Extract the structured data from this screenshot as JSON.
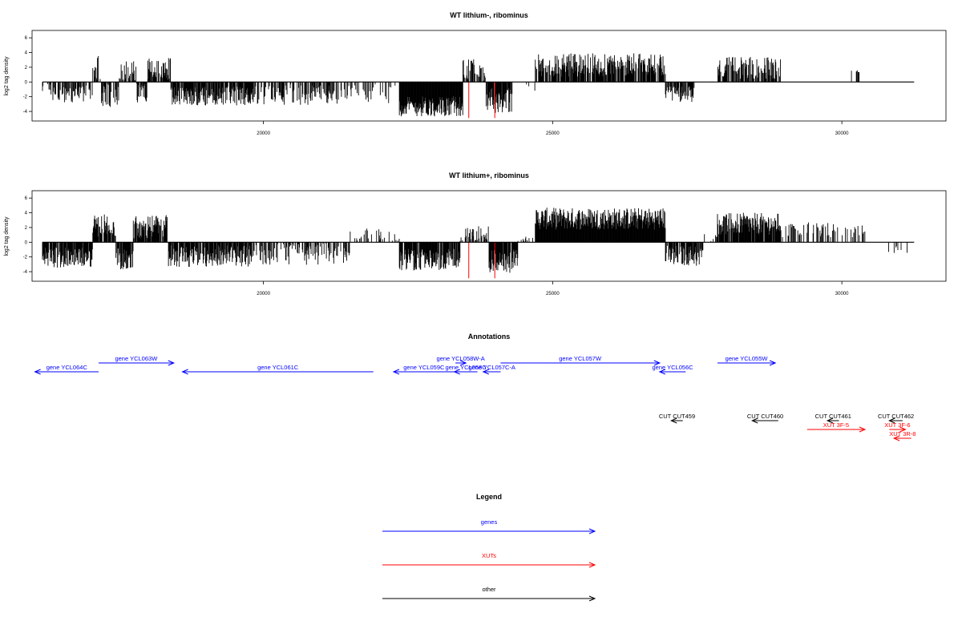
{
  "colors": {
    "genes": "#0000ff",
    "xuts": "#ff0000",
    "other": "#000000",
    "marker": "#ff0000"
  },
  "chart_data": [
    {
      "type": "bar",
      "title": "WT lithium-, ribominus",
      "ylabel": "log2 tag density",
      "xlabel": "",
      "xlim": [
        16000,
        31800
      ],
      "ylim": [
        -5.3,
        7
      ],
      "xticks": [
        20000,
        25000,
        30000
      ],
      "yticks": [
        -4,
        -2,
        0,
        2,
        4,
        6
      ],
      "markers": [
        23550,
        24000
      ],
      "segments": [
        {
          "from": 16180,
          "to": 16320,
          "mean": -0.8,
          "spread": 0.6,
          "density": 0.4
        },
        {
          "from": 16320,
          "to": 17050,
          "mean": -1.7,
          "spread": 1.2,
          "density": 0.55
        },
        {
          "from": 17050,
          "to": 17200,
          "mean": 1.8,
          "spread": 1.8,
          "density": 0.7
        },
        {
          "from": 17200,
          "to": 17500,
          "mean": -1.9,
          "spread": 1.6,
          "density": 0.6
        },
        {
          "from": 17500,
          "to": 17800,
          "mean": 1.3,
          "spread": 1.6,
          "density": 0.7
        },
        {
          "from": 17800,
          "to": 18000,
          "mean": -1.3,
          "spread": 1.5,
          "density": 0.6
        },
        {
          "from": 18000,
          "to": 18400,
          "mean": 1.7,
          "spread": 1.6,
          "density": 0.7
        },
        {
          "from": 18400,
          "to": 19800,
          "mean": -1.9,
          "spread": 1.3,
          "density": 0.85
        },
        {
          "from": 19800,
          "to": 21300,
          "mean": -1.7,
          "spread": 1.4,
          "density": 0.55
        },
        {
          "from": 21300,
          "to": 22350,
          "mean": -1.6,
          "spread": 1.3,
          "density": 0.25
        },
        {
          "from": 22350,
          "to": 23450,
          "mean": -3.3,
          "spread": 1.4,
          "density": 1.0
        },
        {
          "from": 23450,
          "to": 23850,
          "mean": 1.6,
          "spread": 1.5,
          "density": 0.5
        },
        {
          "from": 23850,
          "to": 24300,
          "mean": -2.4,
          "spread": 1.8,
          "density": 0.9
        },
        {
          "from": 24300,
          "to": 24700,
          "mean": -0.5,
          "spread": 0.7,
          "density": 0.15
        },
        {
          "from": 24700,
          "to": 26950,
          "mean": 2.3,
          "spread": 1.6,
          "density": 0.8
        },
        {
          "from": 26950,
          "to": 27450,
          "mean": -1.7,
          "spread": 1.1,
          "density": 0.75
        },
        {
          "from": 27450,
          "to": 27850,
          "mean": 0.0,
          "spread": 0.2,
          "density": 0.02
        },
        {
          "from": 27850,
          "to": 28950,
          "mean": 1.9,
          "spread": 1.5,
          "density": 0.65
        },
        {
          "from": 28950,
          "to": 30250,
          "mean": 1.5,
          "spread": 0.3,
          "density": 0.01
        },
        {
          "from": 30250,
          "to": 30300,
          "mean": 1.5,
          "spread": 0.2,
          "density": 0.8
        }
      ]
    },
    {
      "type": "bar",
      "title": "WT lithium+, ribominus",
      "ylabel": "log2 tag density",
      "xlabel": "",
      "xlim": [
        16000,
        31800
      ],
      "ylim": [
        -5.3,
        7
      ],
      "xticks": [
        20000,
        25000,
        30000
      ],
      "yticks": [
        -4,
        -2,
        0,
        2,
        4,
        6
      ],
      "markers": [
        23550,
        24000
      ],
      "segments": [
        {
          "from": 16180,
          "to": 17050,
          "mean": -2.1,
          "spread": 1.4,
          "density": 0.9
        },
        {
          "from": 17050,
          "to": 17450,
          "mean": 2.3,
          "spread": 1.5,
          "density": 0.85
        },
        {
          "from": 17450,
          "to": 17750,
          "mean": -2.2,
          "spread": 1.5,
          "density": 0.8
        },
        {
          "from": 17750,
          "to": 18350,
          "mean": 2.1,
          "spread": 1.6,
          "density": 0.85
        },
        {
          "from": 18350,
          "to": 19800,
          "mean": -1.9,
          "spread": 1.5,
          "density": 0.8
        },
        {
          "from": 19800,
          "to": 21500,
          "mean": -1.6,
          "spread": 1.5,
          "density": 0.45
        },
        {
          "from": 21500,
          "to": 22350,
          "mean": 0.2,
          "spread": 1.7,
          "density": 0.3
        },
        {
          "from": 22350,
          "to": 23400,
          "mean": -2.4,
          "spread": 1.5,
          "density": 0.85
        },
        {
          "from": 23400,
          "to": 23900,
          "mean": 1.0,
          "spread": 1.3,
          "density": 0.5
        },
        {
          "from": 23900,
          "to": 24400,
          "mean": -2.6,
          "spread": 1.6,
          "density": 0.95
        },
        {
          "from": 24400,
          "to": 24700,
          "mean": 0.3,
          "spread": 0.8,
          "density": 0.15
        },
        {
          "from": 24700,
          "to": 26950,
          "mean": 3.2,
          "spread": 1.5,
          "density": 1.0
        },
        {
          "from": 26950,
          "to": 27600,
          "mean": -1.8,
          "spread": 1.4,
          "density": 0.85
        },
        {
          "from": 27600,
          "to": 27850,
          "mean": 0.5,
          "spread": 0.8,
          "density": 0.1
        },
        {
          "from": 27850,
          "to": 28950,
          "mean": 2.5,
          "spread": 1.5,
          "density": 0.9
        },
        {
          "from": 28950,
          "to": 29950,
          "mean": 1.7,
          "spread": 1.0,
          "density": 0.3
        },
        {
          "from": 29950,
          "to": 30400,
          "mean": 1.4,
          "spread": 0.9,
          "density": 0.25
        },
        {
          "from": 30800,
          "to": 31200,
          "mean": -0.7,
          "spread": 0.9,
          "density": 0.2
        }
      ]
    }
  ],
  "annotations": {
    "title": "Annotations",
    "features": [
      {
        "label": "gene YCL064C",
        "kind": "genes",
        "from": 16050,
        "to": 17150,
        "row": 2
      },
      {
        "label": "gene YCL063W",
        "kind": "genes",
        "from": 17150,
        "to": 18450,
        "row": 1
      },
      {
        "label": "gene YCL061C",
        "kind": "genes",
        "from": 18600,
        "to": 21900,
        "row": 2
      },
      {
        "label": "gene YCL059C",
        "kind": "genes",
        "from": 22250,
        "to": 23300,
        "row": 2
      },
      {
        "label": "gene YCL058W-A",
        "kind": "genes",
        "from": 23320,
        "to": 23500,
        "row": 1
      },
      {
        "label": "gene YCL058C",
        "kind": "genes",
        "from": 23300,
        "to": 23700,
        "row": 2
      },
      {
        "label": "gene YCL057C-A",
        "kind": "genes",
        "from": 23800,
        "to": 24100,
        "row": 2
      },
      {
        "label": "gene YCL057W",
        "kind": "genes",
        "from": 24100,
        "to": 26850,
        "row": 1
      },
      {
        "label": "gene YCL056C",
        "kind": "genes",
        "from": 26850,
        "to": 27300,
        "row": 2
      },
      {
        "label": "gene YCL055W",
        "kind": "genes",
        "from": 27850,
        "to": 28850,
        "row": 1
      },
      {
        "label": "CUT CUT459",
        "kind": "other",
        "from": 27050,
        "to": 27250,
        "row": 3
      },
      {
        "label": "CUT CUT460",
        "kind": "other",
        "from": 28450,
        "to": 28900,
        "row": 3
      },
      {
        "label": "CUT CUT461",
        "kind": "other",
        "from": 29750,
        "to": 29950,
        "row": 3
      },
      {
        "label": "CUT CUT462",
        "kind": "other",
        "from": 30820,
        "to": 31050,
        "row": 3
      },
      {
        "label": "XUT 3F-5",
        "kind": "xuts",
        "from": 29400,
        "to": 30400,
        "row": 4
      },
      {
        "label": "XUT 3F-6",
        "kind": "xuts",
        "from": 30820,
        "to": 31100,
        "row": 4
      },
      {
        "label": "XUT 3R-8",
        "kind": "xuts",
        "from": 30900,
        "to": 31200,
        "row": 5
      }
    ]
  },
  "legend": {
    "title": "Legend",
    "items": [
      {
        "label": "genes",
        "kind": "genes"
      },
      {
        "label": "XUTs",
        "kind": "xuts"
      },
      {
        "label": "other",
        "kind": "other"
      }
    ]
  }
}
